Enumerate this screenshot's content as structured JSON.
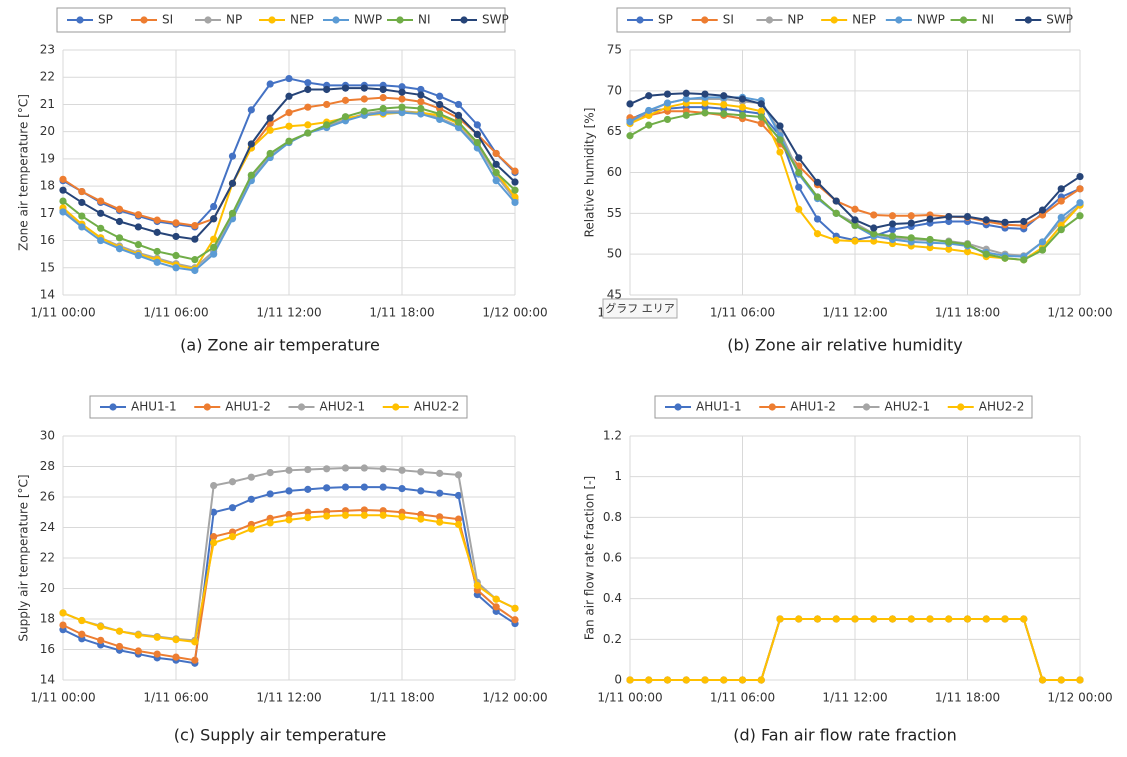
{
  "chart_data": [
    {
      "type": "line",
      "caption": "(a) Zone air temperature",
      "y_label": "Zone air temperature [°C]",
      "categories": [
        "1/11 00:00",
        null,
        null,
        null,
        null,
        null,
        "1/11 06:00",
        null,
        null,
        null,
        null,
        null,
        "1/11 12:00",
        null,
        null,
        null,
        null,
        null,
        "1/11 18:00",
        null,
        null,
        null,
        null,
        null,
        "1/12 00:00"
      ],
      "ylim": [
        14,
        23
      ],
      "yticks": [
        14,
        15,
        16,
        17,
        18,
        19,
        20,
        21,
        22,
        23
      ],
      "grid": true,
      "legend": "top",
      "series": [
        {
          "name": "SP",
          "color": "#4472c4",
          "values": [
            18.2,
            17.8,
            17.4,
            17.1,
            16.9,
            16.7,
            16.6,
            16.5,
            17.25,
            19.1,
            20.8,
            21.75,
            21.95,
            21.8,
            21.7,
            21.7,
            21.7,
            21.7,
            21.65,
            21.55,
            21.3,
            21.0,
            20.25,
            19.2,
            18.5
          ]
        },
        {
          "name": "SI",
          "color": "#ed7d31",
          "values": [
            18.25,
            17.8,
            17.45,
            17.15,
            16.95,
            16.75,
            16.65,
            16.55,
            16.8,
            18.1,
            19.4,
            20.3,
            20.7,
            20.9,
            21.0,
            21.15,
            21.2,
            21.25,
            21.2,
            21.1,
            20.85,
            20.5,
            19.9,
            19.2,
            18.55
          ]
        },
        {
          "name": "NP",
          "color": "#a5a5a5",
          "values": [
            17.1,
            16.6,
            16.1,
            15.8,
            15.55,
            15.35,
            15.15,
            15.0,
            15.6,
            16.9,
            18.3,
            19.1,
            19.6,
            19.95,
            20.2,
            20.45,
            20.65,
            20.75,
            20.75,
            20.7,
            20.5,
            20.2,
            19.5,
            18.4,
            17.5
          ]
        },
        {
          "name": "NEP",
          "color": "#ffc000",
          "values": [
            17.2,
            16.6,
            16.1,
            15.75,
            15.5,
            15.3,
            15.1,
            14.95,
            16.05,
            18.1,
            19.4,
            20.05,
            20.2,
            20.25,
            20.35,
            20.5,
            20.6,
            20.65,
            20.7,
            20.7,
            20.6,
            20.3,
            19.6,
            18.5,
            17.6
          ]
        },
        {
          "name": "NWP",
          "color": "#5b9bd5",
          "values": [
            17.05,
            16.5,
            16.0,
            15.7,
            15.45,
            15.2,
            15.0,
            14.9,
            15.5,
            16.8,
            18.2,
            19.05,
            19.6,
            19.95,
            20.15,
            20.4,
            20.6,
            20.7,
            20.7,
            20.65,
            20.45,
            20.15,
            19.4,
            18.2,
            17.4
          ]
        },
        {
          "name": "NI",
          "color": "#70ad47",
          "values": [
            17.45,
            16.9,
            16.45,
            16.1,
            15.85,
            15.6,
            15.45,
            15.3,
            15.75,
            17.0,
            18.4,
            19.2,
            19.65,
            19.95,
            20.25,
            20.55,
            20.75,
            20.85,
            20.9,
            20.85,
            20.65,
            20.35,
            19.6,
            18.5,
            17.85
          ]
        },
        {
          "name": "SWP",
          "color": "#264478",
          "values": [
            17.85,
            17.4,
            17.0,
            16.7,
            16.5,
            16.3,
            16.15,
            16.05,
            16.8,
            18.1,
            19.55,
            20.5,
            21.3,
            21.55,
            21.55,
            21.6,
            21.6,
            21.55,
            21.45,
            21.35,
            21.0,
            20.6,
            19.9,
            18.8,
            18.15
          ]
        }
      ]
    },
    {
      "type": "line",
      "caption": "(b) Zone air relative humidity",
      "y_label": "Relative humidity [%]",
      "categories": [
        "1/11 00:00",
        null,
        null,
        null,
        null,
        null,
        "1/11 06:00",
        null,
        null,
        null,
        null,
        null,
        "1/11 12:00",
        null,
        null,
        null,
        null,
        null,
        "1/11 18:00",
        null,
        null,
        null,
        null,
        null,
        "1/12 00:00"
      ],
      "ylim": [
        45,
        75
      ],
      "yticks": [
        45,
        50,
        55,
        60,
        65,
        70,
        75
      ],
      "grid": true,
      "legend": "top",
      "series": [
        {
          "name": "SP",
          "color": "#4472c4",
          "values": [
            66.5,
            67.5,
            67.8,
            68.0,
            68.0,
            67.8,
            67.5,
            67.2,
            64.5,
            58.2,
            54.3,
            52.2,
            51.7,
            52.2,
            53.0,
            53.4,
            53.8,
            54.0,
            54.0,
            53.6,
            53.2,
            53.1,
            55.0,
            57.0,
            58.0
          ]
        },
        {
          "name": "SI",
          "color": "#ed7d31",
          "values": [
            66.7,
            67.0,
            67.5,
            67.5,
            67.3,
            67.0,
            66.6,
            66.0,
            63.5,
            60.8,
            58.5,
            56.5,
            55.5,
            54.8,
            54.7,
            54.7,
            54.8,
            54.6,
            54.5,
            54.0,
            53.6,
            53.5,
            54.8,
            56.5,
            58.0
          ]
        },
        {
          "name": "NP",
          "color": "#a5a5a5",
          "values": [
            66.0,
            67.5,
            68.5,
            69.0,
            69.0,
            69.0,
            68.7,
            68.5,
            65.0,
            60.0,
            57.0,
            55.0,
            53.8,
            52.5,
            52.0,
            51.8,
            51.7,
            51.6,
            51.3,
            50.6,
            50.0,
            49.8,
            51.5,
            54.0,
            56.0
          ]
        },
        {
          "name": "NEP",
          "color": "#ffc000",
          "values": [
            66.0,
            67.0,
            68.0,
            68.5,
            68.5,
            68.3,
            68.0,
            67.5,
            62.5,
            55.5,
            52.5,
            51.7,
            51.6,
            51.6,
            51.3,
            51.0,
            50.8,
            50.6,
            50.3,
            49.7,
            49.5,
            49.3,
            50.8,
            53.5,
            56.0
          ]
        },
        {
          "name": "NWP",
          "color": "#5b9bd5",
          "values": [
            66.2,
            67.6,
            68.5,
            69.0,
            69.2,
            69.2,
            69.2,
            68.8,
            64.5,
            59.8,
            56.8,
            55.0,
            53.5,
            52.2,
            51.8,
            51.5,
            51.4,
            51.3,
            51.0,
            50.2,
            49.8,
            49.7,
            51.5,
            54.5,
            56.3
          ]
        },
        {
          "name": "NI",
          "color": "#70ad47",
          "values": [
            64.5,
            65.8,
            66.5,
            67.0,
            67.3,
            67.2,
            67.0,
            66.8,
            64.0,
            60.0,
            57.0,
            55.0,
            53.5,
            52.5,
            52.2,
            52.0,
            51.8,
            51.5,
            51.2,
            50.0,
            49.5,
            49.3,
            50.5,
            53.0,
            54.7
          ]
        },
        {
          "name": "SWP",
          "color": "#264478",
          "values": [
            68.4,
            69.4,
            69.6,
            69.7,
            69.6,
            69.4,
            69.0,
            68.4,
            65.7,
            61.8,
            58.8,
            56.5,
            54.2,
            53.2,
            53.7,
            53.8,
            54.3,
            54.6,
            54.6,
            54.2,
            53.9,
            54.0,
            55.4,
            58.0,
            59.5
          ]
        }
      ]
    },
    {
      "type": "line",
      "caption": "(c) Supply air temperature",
      "y_label": "Supply air temperature [°C]",
      "categories": [
        "1/11 00:00",
        null,
        null,
        null,
        null,
        null,
        "1/11 06:00",
        null,
        null,
        null,
        null,
        null,
        "1/11 12:00",
        null,
        null,
        null,
        null,
        null,
        "1/11 18:00",
        null,
        null,
        null,
        null,
        null,
        "1/12 00:00"
      ],
      "ylim": [
        14,
        30
      ],
      "yticks": [
        14,
        16,
        18,
        20,
        22,
        24,
        26,
        28,
        30
      ],
      "grid": true,
      "legend": "top",
      "series": [
        {
          "name": "AHU1-1",
          "color": "#4472c4",
          "values": [
            17.3,
            16.7,
            16.3,
            15.95,
            15.7,
            15.45,
            15.3,
            15.1,
            25.0,
            25.3,
            25.85,
            26.2,
            26.4,
            26.5,
            26.6,
            26.65,
            26.65,
            26.65,
            26.55,
            26.4,
            26.25,
            26.1,
            19.6,
            18.5,
            17.7
          ]
        },
        {
          "name": "AHU1-2",
          "color": "#ed7d31",
          "values": [
            17.6,
            17.0,
            16.6,
            16.2,
            15.9,
            15.7,
            15.5,
            15.3,
            23.4,
            23.7,
            24.2,
            24.6,
            24.85,
            25.0,
            25.05,
            25.1,
            25.15,
            25.1,
            25.0,
            24.85,
            24.7,
            24.55,
            19.9,
            18.8,
            17.95
          ]
        },
        {
          "name": "AHU2-1",
          "color": "#a5a5a5",
          "values": [
            18.4,
            17.9,
            17.55,
            17.2,
            17.0,
            16.85,
            16.7,
            16.6,
            26.75,
            27.0,
            27.3,
            27.6,
            27.75,
            27.8,
            27.85,
            27.9,
            27.9,
            27.85,
            27.75,
            27.65,
            27.55,
            27.45,
            20.4,
            19.3,
            18.7
          ]
        },
        {
          "name": "AHU2-2",
          "color": "#ffc000",
          "values": [
            18.4,
            17.9,
            17.5,
            17.2,
            16.95,
            16.8,
            16.65,
            16.5,
            23.0,
            23.4,
            23.9,
            24.3,
            24.5,
            24.65,
            24.75,
            24.8,
            24.8,
            24.8,
            24.7,
            24.55,
            24.35,
            24.2,
            20.2,
            19.3,
            18.7
          ]
        }
      ]
    },
    {
      "type": "line",
      "caption": "(d) Fan air flow rate fraction",
      "y_label": "Fan air flow rate fraction [-]",
      "categories": [
        "1/11 00:00",
        null,
        null,
        null,
        null,
        null,
        "1/11 06:00",
        null,
        null,
        null,
        null,
        null,
        "1/11 12:00",
        null,
        null,
        null,
        null,
        null,
        "1/11 18:00",
        null,
        null,
        null,
        null,
        null,
        "1/12 00:00"
      ],
      "ylim": [
        0,
        1.2
      ],
      "yticks": [
        0,
        0.2,
        0.4,
        0.6,
        0.8,
        1,
        1.2
      ],
      "grid": true,
      "legend": "top",
      "series": [
        {
          "name": "AHU1-1",
          "color": "#4472c4",
          "values": [
            0,
            0,
            0,
            0,
            0,
            0,
            0,
            0,
            0.3,
            0.3,
            0.3,
            0.3,
            0.3,
            0.3,
            0.3,
            0.3,
            0.3,
            0.3,
            0.3,
            0.3,
            0.3,
            0.3,
            0,
            0,
            0
          ]
        },
        {
          "name": "AHU1-2",
          "color": "#ed7d31",
          "values": [
            0,
            0,
            0,
            0,
            0,
            0,
            0,
            0,
            0.3,
            0.3,
            0.3,
            0.3,
            0.3,
            0.3,
            0.3,
            0.3,
            0.3,
            0.3,
            0.3,
            0.3,
            0.3,
            0.3,
            0,
            0,
            0
          ]
        },
        {
          "name": "AHU2-1",
          "color": "#a5a5a5",
          "values": [
            0,
            0,
            0,
            0,
            0,
            0,
            0,
            0,
            0.3,
            0.3,
            0.3,
            0.3,
            0.3,
            0.3,
            0.3,
            0.3,
            0.3,
            0.3,
            0.3,
            0.3,
            0.3,
            0.3,
            0,
            0,
            0
          ]
        },
        {
          "name": "AHU2-2",
          "color": "#ffc000",
          "values": [
            0,
            0,
            0,
            0,
            0,
            0,
            0,
            0,
            0.3,
            0.3,
            0.3,
            0.3,
            0.3,
            0.3,
            0.3,
            0.3,
            0.3,
            0.3,
            0.3,
            0.3,
            0.3,
            0.3,
            0,
            0,
            0
          ]
        }
      ]
    }
  ],
  "tooltip": "グラフ エリア"
}
